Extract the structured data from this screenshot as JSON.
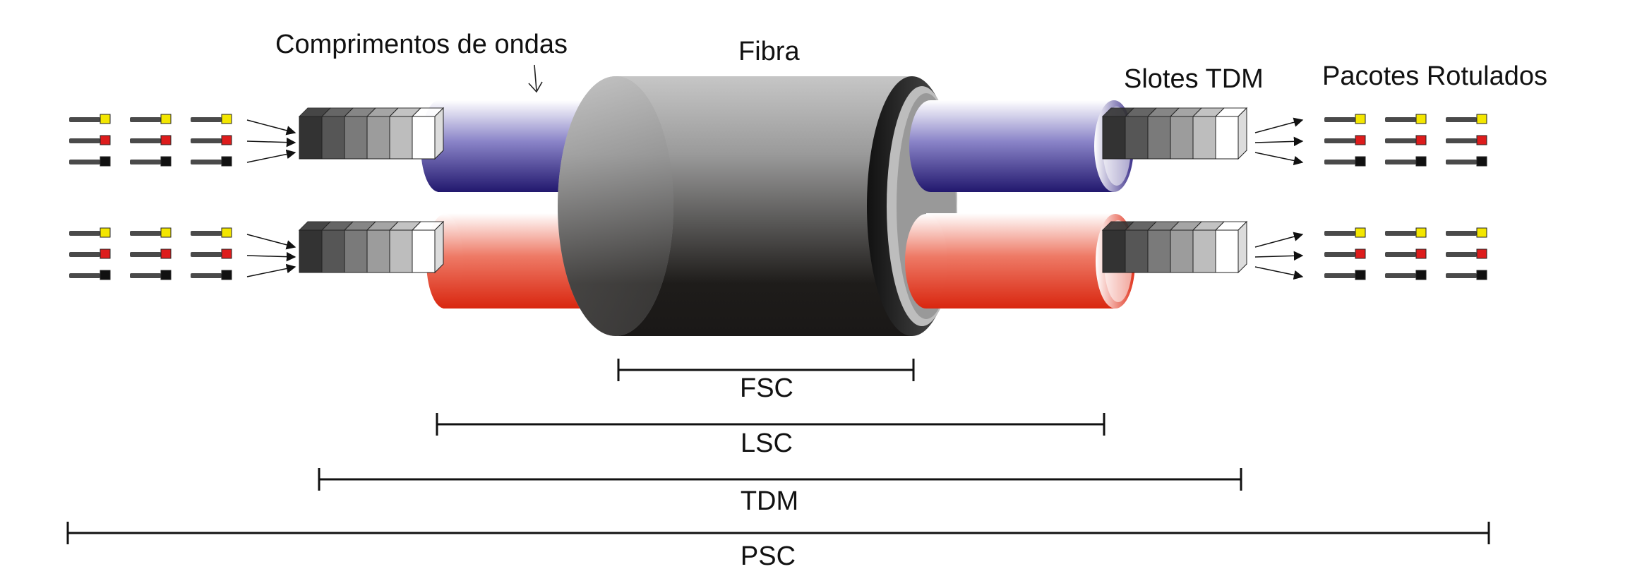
{
  "labels": {
    "wavelengths": "Comprimentos de ondas",
    "fiber": "Fibra",
    "tdm_slots": "Slotes TDM",
    "labeled_packets": "Pacotes Rotulados"
  },
  "scopes": [
    {
      "name": "FSC"
    },
    {
      "name": "LSC"
    },
    {
      "name": "TDM"
    },
    {
      "name": "PSC"
    }
  ],
  "colors": {
    "blue_lambda": "#2a1f7a",
    "red_lambda": "#dd2a1a",
    "fiber_dark": "#1d1b1a",
    "fiber_light": "#c4c4c4",
    "packet_yellow": "#f3e600",
    "packet_red": "#dd1c1c",
    "packet_black": "#111111"
  }
}
